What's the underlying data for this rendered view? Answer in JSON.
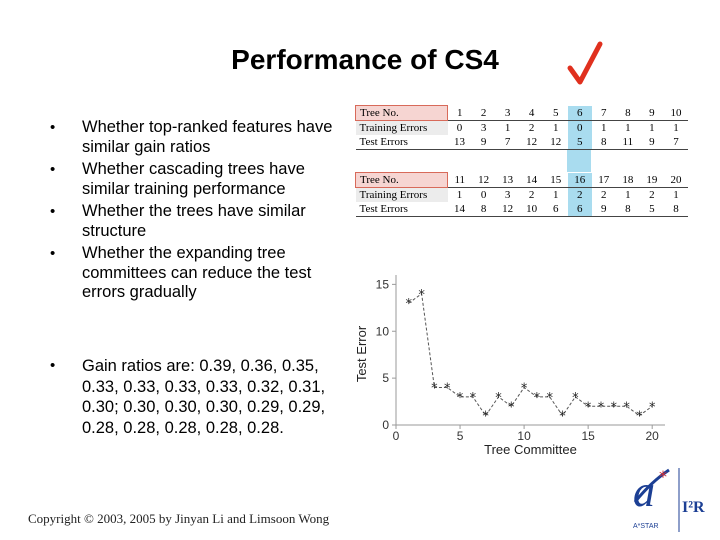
{
  "slide": {
    "title": "Performance of CS4",
    "bullets": [
      "Whether top-ranked features have similar gain ratios",
      "Whether cascading trees have similar training performance",
      "Whether the trees have similar structure",
      "Whether the expanding tree committees can reduce the test errors gradually"
    ],
    "bullet_char": "•",
    "gain_text": "Gain ratios are: 0.39, 0.36, 0.35, 0.33, 0.33, 0.33, 0.33, 0.32, 0.31, 0.30; 0.30, 0.30, 0.30, 0.29, 0.29, 0.28, 0.28, 0.28, 0.28, 0.28.",
    "footer": "Copyright © 2003, 2005 by Jinyan Li and Limsoon Wong",
    "logo_text": "I²R",
    "logo_subtext": "A*STAR",
    "check_mark": "✓",
    "colors": {
      "accent_red": "#e0301e",
      "highlight_blue": "#a9dcef",
      "logo_red": "#d12e36",
      "logo_blue": "#1c3f94"
    }
  },
  "tables": [
    {
      "labels": [
        "Tree No.",
        "Training Errors",
        "Test Errors"
      ],
      "tree_no": [
        "1",
        "2",
        "3",
        "4",
        "5",
        "6",
        "7",
        "8",
        "9",
        "10"
      ],
      "training_errors": [
        "0",
        "3",
        "1",
        "2",
        "1",
        "0",
        "1",
        "1",
        "1",
        "1"
      ],
      "test_errors": [
        "13",
        "9",
        "7",
        "12",
        "12",
        "5",
        "8",
        "11",
        "9",
        "7"
      ],
      "highlight_index": 5
    },
    {
      "labels": [
        "Tree No.",
        "Training Errors",
        "Test Errors"
      ],
      "tree_no": [
        "11",
        "12",
        "13",
        "14",
        "15",
        "16",
        "17",
        "18",
        "19",
        "20"
      ],
      "training_errors": [
        "1",
        "0",
        "3",
        "2",
        "1",
        "2",
        "2",
        "1",
        "2",
        "1"
      ],
      "test_errors": [
        "14",
        "8",
        "12",
        "10",
        "6",
        "6",
        "9",
        "8",
        "5",
        "8"
      ],
      "highlight_index": 5
    }
  ],
  "chart_data": {
    "type": "line",
    "title": "",
    "xlabel": "Tree Committee",
    "ylabel": "Test Error",
    "xlim": [
      0,
      21
    ],
    "ylim": [
      0,
      16
    ],
    "xticks": [
      0,
      5,
      10,
      15,
      20
    ],
    "yticks": [
      0,
      5,
      10,
      15
    ],
    "x": [
      1,
      2,
      3,
      4,
      5,
      6,
      7,
      8,
      9,
      10,
      11,
      12,
      13,
      14,
      15,
      16,
      17,
      18,
      19,
      20
    ],
    "y": [
      13,
      14,
      4,
      4,
      3,
      3,
      1,
      3,
      2,
      4,
      3,
      3,
      1,
      3,
      2,
      2,
      2,
      2,
      1,
      2
    ],
    "marker": "star",
    "line_style": "dashed",
    "grid": false
  }
}
